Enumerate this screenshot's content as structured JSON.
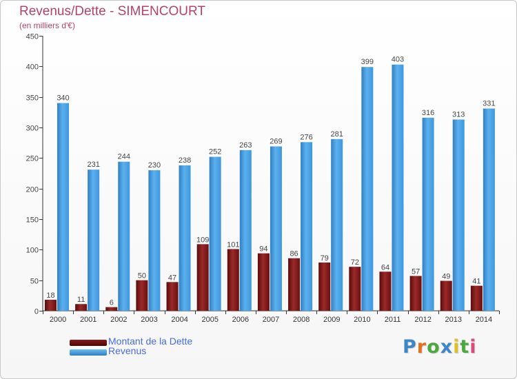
{
  "title": "Revenus/Dette - SIMENCOURT",
  "subtitle": "(en milliers d'€)",
  "logo": {
    "text": "Proxiti",
    "letter_colors": [
      "#3f86c6",
      "#e7701f",
      "#4aa83f",
      "#3f86c6",
      "#e0c02a",
      "#4aa83f",
      "#d84b7a"
    ]
  },
  "colors": {
    "dette": "#6b0e0e",
    "revenus": "#3f97dd",
    "title": "#b3426b",
    "legend_text": "#4a6ae0"
  },
  "chart_data": {
    "type": "bar",
    "categories": [
      "2000",
      "2001",
      "2002",
      "2003",
      "2004",
      "2005",
      "2006",
      "2007",
      "2008",
      "2009",
      "2010",
      "2011",
      "2012",
      "2013",
      "2014"
    ],
    "series": [
      {
        "name": "Montant de la Dette",
        "values": [
          18,
          11,
          6,
          50,
          47,
          109,
          101,
          94,
          86,
          79,
          72,
          64,
          57,
          49,
          41
        ]
      },
      {
        "name": "Revenus",
        "values": [
          340,
          231,
          244,
          230,
          238,
          252,
          263,
          269,
          276,
          281,
          399,
          403,
          316,
          313,
          331
        ]
      }
    ],
    "ylim": [
      0,
      450
    ],
    "yticks": [
      0,
      50,
      100,
      150,
      200,
      250,
      300,
      350,
      400,
      450
    ],
    "grid": false,
    "legend_position": "bottom-left"
  }
}
